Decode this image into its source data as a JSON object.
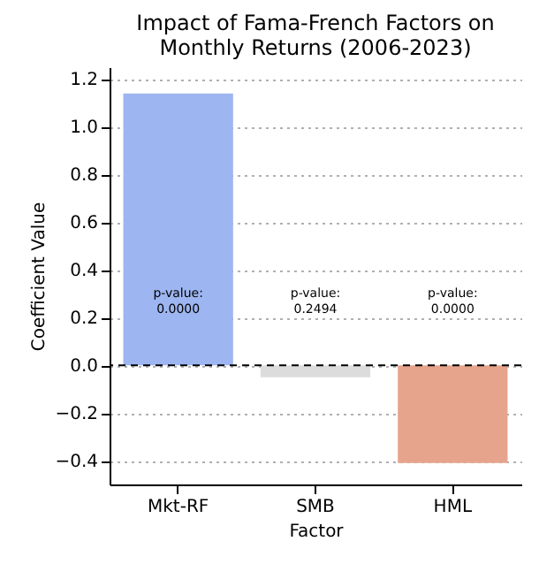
{
  "chart_data": {
    "type": "bar",
    "title": "Impact of Fama-French Factors on\nMonthly Returns (2006-2023)",
    "xlabel": "Factor",
    "ylabel": "Coefficient Value",
    "categories": [
      "Mkt-RF",
      "SMB",
      "HML"
    ],
    "values": [
      1.14,
      -0.05,
      -0.41
    ],
    "colors": [
      "#9db5f0",
      "#dcdcdc",
      "#e6a48c"
    ],
    "ylim": [
      -0.5,
      1.25
    ],
    "yticks": [
      {
        "value": -0.4,
        "label": "−0.4"
      },
      {
        "value": -0.2,
        "label": "−0.2"
      },
      {
        "value": 0,
        "label": "0.0"
      },
      {
        "value": 0.2,
        "label": "0.2"
      },
      {
        "value": 0.4,
        "label": "0.4"
      },
      {
        "value": 0.6,
        "label": "0.6"
      },
      {
        "value": 0.8,
        "label": "0.8"
      },
      {
        "value": 1,
        "label": "1.0"
      },
      {
        "value": 1.2,
        "label": "1.2"
      }
    ],
    "grid": "y",
    "ref_lines": [
      {
        "axis": "y",
        "value": 0,
        "color": "#000000",
        "line_style": "dashed"
      }
    ],
    "annotations": [
      "p-value:\n0.0000",
      "p-value:\n0.2494",
      "p-value:\n0.0000"
    ]
  }
}
